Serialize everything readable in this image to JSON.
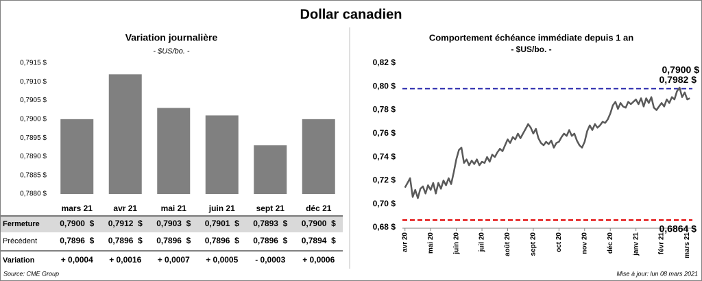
{
  "title": "Dollar canadien",
  "chart_data": [
    {
      "type": "bar",
      "title": "Variation  journalière",
      "subtitle": "- $US/bo. -",
      "categories": [
        "mars 21",
        "avr 21",
        "mai 21",
        "juin 21",
        "sept 21",
        "déc 21"
      ],
      "values": [
        0.79,
        0.7912,
        0.7903,
        0.7901,
        0.7893,
        0.79
      ],
      "color": "#808080",
      "ylim": [
        0.788,
        0.7915
      ],
      "yticks": [
        {
          "value": 0.7915,
          "label": "0,7915 $"
        },
        {
          "value": 0.791,
          "label": "0,7910 $"
        },
        {
          "value": 0.7905,
          "label": "0,7905 $"
        },
        {
          "value": 0.79,
          "label": "0,7900 $"
        },
        {
          "value": 0.7895,
          "label": "0,7895 $"
        },
        {
          "value": 0.789,
          "label": "0,7890 $"
        },
        {
          "value": 0.7885,
          "label": "0,7885 $"
        },
        {
          "value": 0.788,
          "label": "0,7880 $"
        }
      ]
    },
    {
      "type": "line",
      "title": "Comportement échéance immédiate depuis 1 an",
      "subtitle": "- $US/bo. -",
      "color": "#595959",
      "x": [
        0,
        0.1,
        0.2,
        0.3,
        0.4,
        0.5,
        0.6,
        0.7,
        0.8,
        0.9,
        1,
        1.1,
        1.2,
        1.3,
        1.4,
        1.5,
        1.6,
        1.7,
        1.8,
        1.9,
        2,
        2.1,
        2.2,
        2.3,
        2.4,
        2.5,
        2.6,
        2.7,
        2.8,
        2.9,
        3,
        3.1,
        3.2,
        3.3,
        3.4,
        3.5,
        3.6,
        3.7,
        3.8,
        3.9,
        4,
        4.1,
        4.2,
        4.3,
        4.4,
        4.5,
        4.6,
        4.7,
        4.8,
        4.9,
        5,
        5.1,
        5.2,
        5.3,
        5.4,
        5.5,
        5.6,
        5.7,
        5.8,
        5.9,
        6,
        6.1,
        6.2,
        6.3,
        6.4,
        6.5,
        6.6,
        6.7,
        6.8,
        6.9,
        7,
        7.1,
        7.2,
        7.3,
        7.4,
        7.5,
        7.6,
        7.7,
        7.8,
        7.9,
        8,
        8.1,
        8.2,
        8.3,
        8.4,
        8.5,
        8.6,
        8.7,
        8.8,
        8.9,
        9,
        9.1,
        9.2,
        9.3,
        9.4,
        9.5,
        9.6,
        9.7,
        9.8,
        9.9,
        10,
        10.1,
        10.2,
        10.3,
        10.4,
        10.5,
        10.6,
        10.7,
        10.8,
        10.9,
        11,
        11.1
      ],
      "values": [
        0.714,
        0.718,
        0.722,
        0.706,
        0.712,
        0.705,
        0.713,
        0.715,
        0.709,
        0.716,
        0.712,
        0.718,
        0.709,
        0.718,
        0.713,
        0.72,
        0.716,
        0.722,
        0.717,
        0.727,
        0.738,
        0.746,
        0.748,
        0.735,
        0.738,
        0.733,
        0.737,
        0.734,
        0.738,
        0.733,
        0.736,
        0.735,
        0.74,
        0.736,
        0.742,
        0.74,
        0.744,
        0.747,
        0.745,
        0.75,
        0.755,
        0.752,
        0.757,
        0.755,
        0.76,
        0.756,
        0.76,
        0.764,
        0.768,
        0.765,
        0.76,
        0.764,
        0.756,
        0.752,
        0.75,
        0.753,
        0.751,
        0.754,
        0.748,
        0.752,
        0.753,
        0.757,
        0.76,
        0.758,
        0.763,
        0.758,
        0.76,
        0.754,
        0.75,
        0.748,
        0.753,
        0.762,
        0.767,
        0.763,
        0.768,
        0.765,
        0.767,
        0.77,
        0.769,
        0.772,
        0.777,
        0.784,
        0.787,
        0.781,
        0.786,
        0.783,
        0.782,
        0.787,
        0.785,
        0.787,
        0.789,
        0.785,
        0.79,
        0.783,
        0.79,
        0.786,
        0.791,
        0.782,
        0.78,
        0.783,
        0.786,
        0.783,
        0.789,
        0.786,
        0.791,
        0.789,
        0.796,
        0.799,
        0.791,
        0.795,
        0.789,
        0.79
      ],
      "xlim": [
        -0.1,
        11.2
      ],
      "xticks": [
        {
          "value": 0,
          "label": "avr 20"
        },
        {
          "value": 1,
          "label": "mai 20"
        },
        {
          "value": 2,
          "label": "juin 20"
        },
        {
          "value": 3,
          "label": "juil 20"
        },
        {
          "value": 4,
          "label": "août 20"
        },
        {
          "value": 5,
          "label": "sept 20"
        },
        {
          "value": 6,
          "label": "oct 20"
        },
        {
          "value": 7,
          "label": "nov 20"
        },
        {
          "value": 8,
          "label": "déc 20"
        },
        {
          "value": 9,
          "label": "janv 21"
        },
        {
          "value": 10,
          "label": "févr 21"
        },
        {
          "value": 11,
          "label": "mars 21"
        }
      ],
      "ylim": [
        0.68,
        0.82
      ],
      "yticks": [
        {
          "value": 0.68,
          "label": "0,68 $"
        },
        {
          "value": 0.7,
          "label": "0,70 $"
        },
        {
          "value": 0.72,
          "label": "0,72 $"
        },
        {
          "value": 0.74,
          "label": "0,74 $"
        },
        {
          "value": 0.76,
          "label": "0,76 $"
        },
        {
          "value": 0.78,
          "label": "0,78 $"
        },
        {
          "value": 0.8,
          "label": "0,80 $"
        },
        {
          "value": 0.82,
          "label": "0,82 $"
        }
      ],
      "reference_lines": [
        {
          "value": 0.7982,
          "label": "0,7982 $",
          "color": "#1f1fa8"
        },
        {
          "value": 0.6864,
          "label": "0,6864 $",
          "color": "#e00000"
        }
      ],
      "annotations": [
        {
          "value": 0.79,
          "label": "0,7900 $"
        }
      ]
    }
  ],
  "table": {
    "row_labels": [
      "Fermeture",
      "Précédent",
      "Variation"
    ],
    "rows": [
      [
        "0,7900  $",
        "0,7912  $",
        "0,7903  $",
        "0,7901  $",
        "0,7893  $",
        "0,7900  $"
      ],
      [
        "0,7896  $",
        "0,7896  $",
        "0,7896  $",
        "0,7896  $",
        "0,7896  $",
        "0,7894  $"
      ],
      [
        "+ 0,0004",
        "+ 0,0016",
        "+ 0,0007",
        "+ 0,0005",
        "- 0,0003",
        "+ 0,0006"
      ]
    ],
    "variation_colors": [
      "#2e8b2e",
      "#2e8b2e",
      "#2e8b2e",
      "#2e8b2e",
      "#e00000",
      "#2e8b2e"
    ]
  },
  "source": "Source: CME Group",
  "updated": "Mise à jour: lun 08 mars 2021"
}
